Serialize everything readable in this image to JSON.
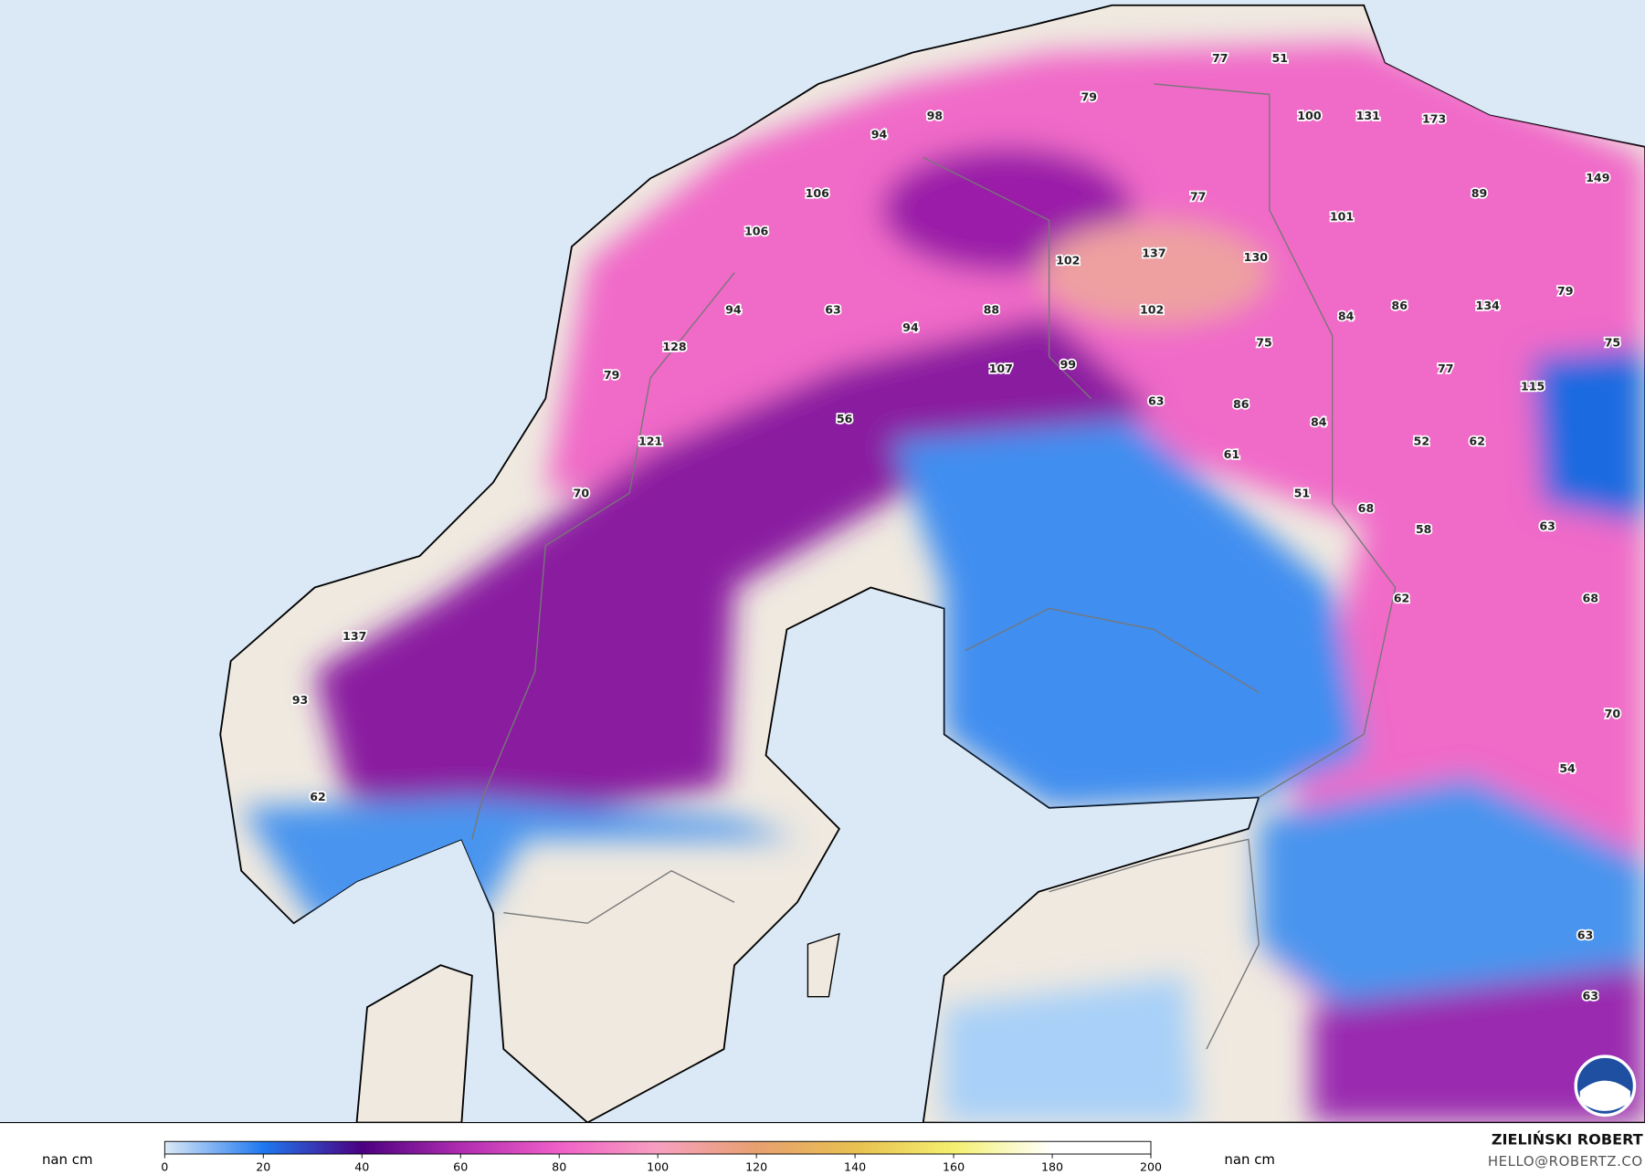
{
  "map": {
    "labels": [
      "77",
      "51",
      "79",
      "98",
      "94",
      "100",
      "131",
      "173",
      "149",
      "106",
      "106",
      "77",
      "89",
      "101",
      "102",
      "137",
      "130",
      "94",
      "63",
      "94",
      "88",
      "102",
      "84",
      "86",
      "134",
      "79",
      "128",
      "75",
      "75",
      "79",
      "107",
      "99",
      "77",
      "115",
      "63",
      "86",
      "56",
      "121",
      "84",
      "61",
      "52",
      "62",
      "70",
      "51",
      "68",
      "63",
      "58",
      "62",
      "68",
      "137",
      "93",
      "70",
      "54",
      "62",
      "63",
      "63"
    ]
  },
  "colorbar": {
    "range": [
      0,
      200
    ],
    "ticks": [
      0,
      20,
      40,
      60,
      80,
      100,
      120,
      140,
      160,
      180,
      200
    ],
    "colors": [
      "#dbe9f6",
      "#1f78f0",
      "#4b0080",
      "#b02cb0",
      "#f060c8",
      "#f7a0c0",
      "#e8a070",
      "#e8c050",
      "#f4f070",
      "#ffffff",
      "#ffffff"
    ],
    "left_label": "nan cm",
    "right_label": "nan cm"
  },
  "credits": {
    "author": "ZIELIŃSKI ROBERT",
    "contact": "HELLO@ROBERTZ.CO"
  }
}
